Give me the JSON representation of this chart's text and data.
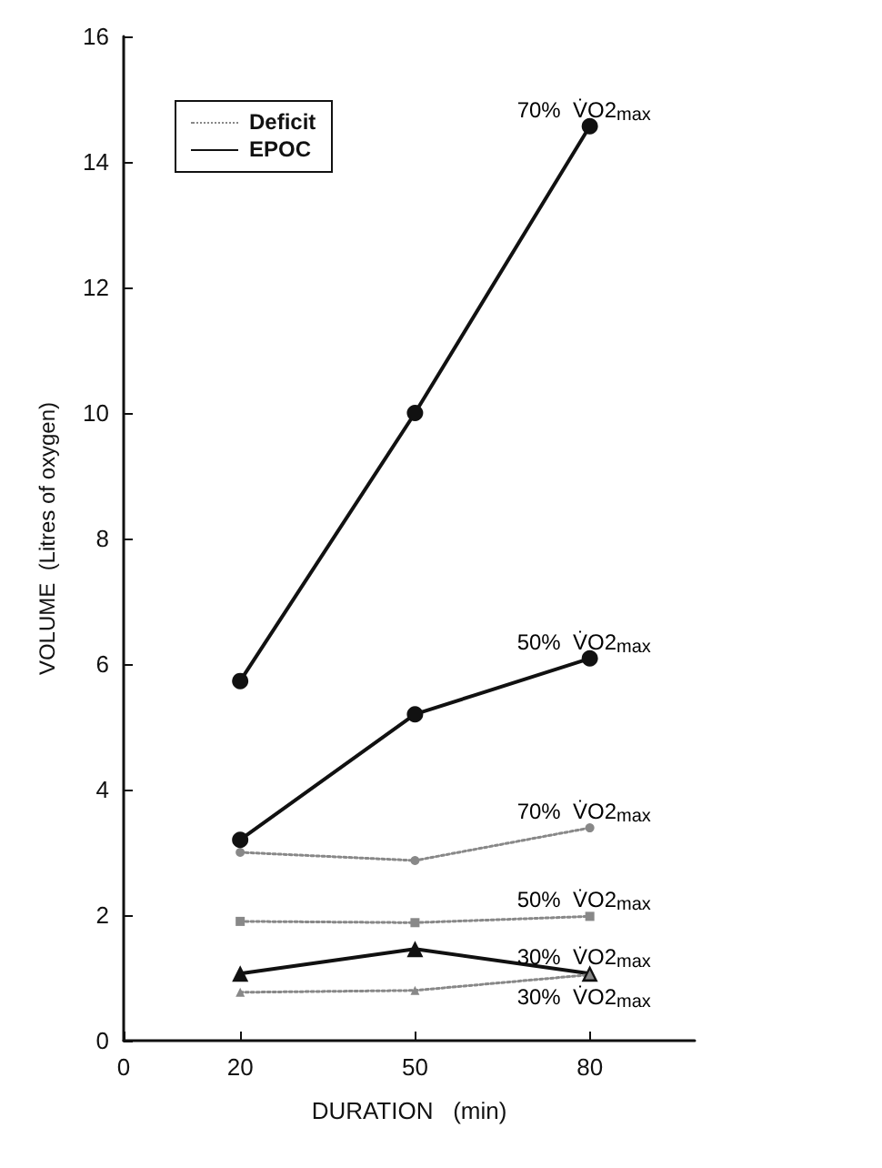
{
  "chart_data": {
    "type": "line",
    "xlabel": "DURATION   (min)",
    "ylabel": "VOLUME  (Litres of oxygen)",
    "x": [
      20,
      50,
      80
    ],
    "xlim": [
      0,
      98
    ],
    "xticks": [
      0,
      20,
      50,
      80
    ],
    "ylim": [
      0,
      16
    ],
    "yticks": [
      0,
      2,
      4,
      6,
      8,
      10,
      12,
      14,
      16
    ],
    "grid": false,
    "legend": "right",
    "series": [
      {
        "name": "70%  V̇O2$_{max}$",
        "color": "#888888",
        "line_style": "dotted",
        "marker": "circle",
        "values": [
          3.0,
          2.87,
          3.39
        ]
      },
      {
        "name": "70%  V̇O2$_{max}$",
        "color": "#111111",
        "line_style": "solid",
        "marker": "circle",
        "values": [
          5.73,
          10.0,
          14.57
        ]
      },
      {
        "name": "50%  V̇O2$_{max}$",
        "color": "#111111",
        "line_style": "solid",
        "marker": "circle",
        "values": [
          3.2,
          5.2,
          6.09
        ]
      },
      {
        "name": "50%  V̇O2$_{max}$",
        "color": "#888888",
        "line_style": "dotted",
        "marker": "square",
        "values": [
          1.9,
          1.88,
          1.98
        ]
      },
      {
        "name": "30%  V̇O2$_{max}$",
        "color": "#111111",
        "line_style": "solid",
        "marker": "triangle",
        "values": [
          1.07,
          1.46,
          1.07
        ]
      },
      {
        "name": "30%  V̇O2$_{max}$",
        "color": "#888888",
        "line_style": "dotted",
        "marker": "triangle",
        "values": [
          0.77,
          0.8,
          1.05
        ]
      }
    ],
    "annotations": [
      "Deficit",
      "EPOC"
    ]
  }
}
